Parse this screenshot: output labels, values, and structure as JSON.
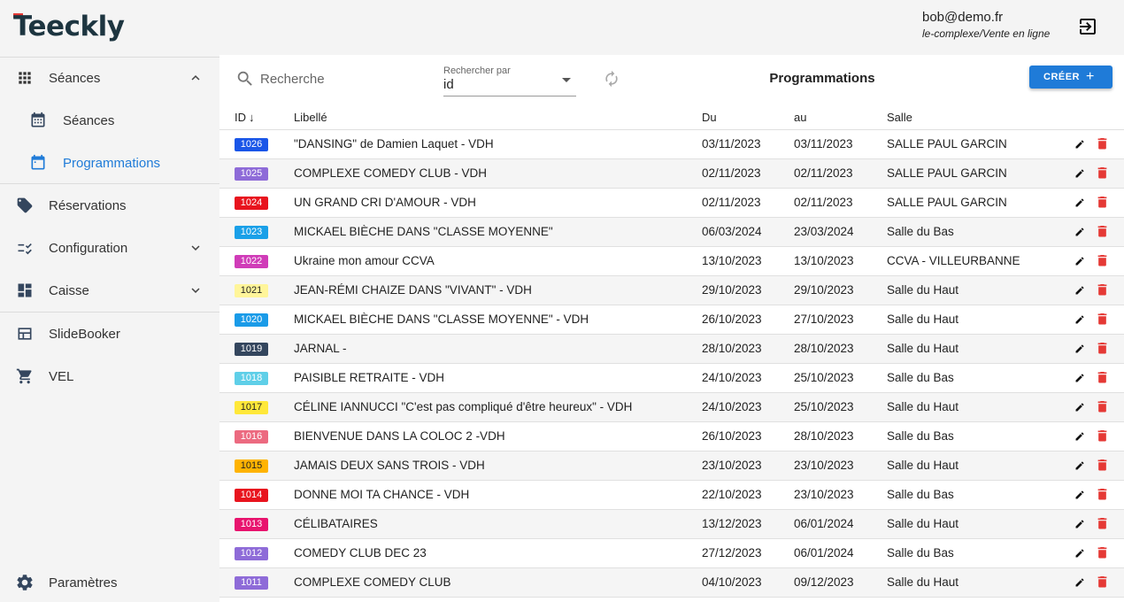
{
  "app": {
    "logo_text": "Teeckly"
  },
  "user": {
    "email": "bob@demo.fr",
    "context": "le-complexe/Vente en ligne"
  },
  "sidebar": {
    "items": [
      {
        "label": "Séances",
        "icon": "grid-icon"
      },
      {
        "label": "Séances",
        "icon": "calendar-icon"
      },
      {
        "label": "Programmations",
        "icon": "calendar-icon",
        "active": true
      },
      {
        "label": "Réservations",
        "icon": "tag-icon"
      },
      {
        "label": "Configuration",
        "icon": "checklist-icon"
      },
      {
        "label": "Caisse",
        "icon": "dashboard-icon"
      },
      {
        "label": "SlideBooker",
        "icon": "table-icon"
      },
      {
        "label": "VEL",
        "icon": "cart-icon"
      },
      {
        "label": "Paramètres",
        "icon": "gear-icon"
      }
    ]
  },
  "toolbar": {
    "search_placeholder": "Recherche",
    "search_by_label": "Rechercher par",
    "search_by_value": "id",
    "title": "Programmations",
    "create_label": "CRÉER",
    "create_plus": "+"
  },
  "table": {
    "headers": {
      "id": "ID",
      "libelle": "Libellé",
      "du": "Du",
      "au": "au",
      "salle": "Salle"
    },
    "sort_arrow": "↓",
    "rows": [
      {
        "id": "1026",
        "color": "#1a56e8",
        "badge_text_color": "#ffffff",
        "libelle": "\"DANSING\" de Damien Laquet - VDH",
        "du": "03/11/2023",
        "au": "03/11/2023",
        "salle": "SALLE PAUL GARCIN"
      },
      {
        "id": "1025",
        "color": "#8e6bd8",
        "badge_text_color": "#ffffff",
        "libelle": "COMPLEXE COMEDY CLUB - VDH",
        "du": "02/11/2023",
        "au": "02/11/2023",
        "salle": "SALLE PAUL GARCIN"
      },
      {
        "id": "1024",
        "color": "#e8141e",
        "badge_text_color": "#ffffff",
        "libelle": "UN GRAND CRI D'AMOUR - VDH",
        "du": "02/11/2023",
        "au": "02/11/2023",
        "salle": "SALLE PAUL GARCIN"
      },
      {
        "id": "1023",
        "color": "#1aa0e8",
        "badge_text_color": "#ffffff",
        "libelle": "MICKAEL BIÈCHE DANS \"CLASSE MOYENNE\"",
        "du": "06/03/2024",
        "au": "23/03/2024",
        "salle": "Salle du Bas"
      },
      {
        "id": "1022",
        "color": "#d03cb8",
        "badge_text_color": "#ffffff",
        "libelle": "Ukraine mon amour CCVA",
        "du": "13/10/2023",
        "au": "13/10/2023",
        "salle": "CCVA - VILLEURBANNE"
      },
      {
        "id": "1021",
        "color": "#fff59a",
        "badge_text_color": "#222222",
        "libelle": "JEAN-RÉMI CHAIZE DANS \"VIVANT\" - VDH",
        "du": "29/10/2023",
        "au": "29/10/2023",
        "salle": "Salle du Haut"
      },
      {
        "id": "1020",
        "color": "#1a9be8",
        "badge_text_color": "#ffffff",
        "libelle": "MICKAEL BIÈCHE DANS \"CLASSE MOYENNE\" - VDH",
        "du": "26/10/2023",
        "au": "27/10/2023",
        "salle": "Salle du Haut"
      },
      {
        "id": "1019",
        "color": "#34465e",
        "badge_text_color": "#ffffff",
        "libelle": "JARNAL -",
        "du": "28/10/2023",
        "au": "28/10/2023",
        "salle": "Salle du Haut"
      },
      {
        "id": "1018",
        "color": "#5fcfe8",
        "badge_text_color": "#ffffff",
        "libelle": "PAISIBLE RETRAITE - VDH",
        "du": "24/10/2023",
        "au": "25/10/2023",
        "salle": "Salle du Bas"
      },
      {
        "id": "1017",
        "color": "#ffe83a",
        "badge_text_color": "#222222",
        "libelle": "CÉLINE IANNUCCI \"C'est pas compliqué d'être heureux\" - VDH",
        "du": "24/10/2023",
        "au": "25/10/2023",
        "salle": "Salle du Haut"
      },
      {
        "id": "1016",
        "color": "#ec6a80",
        "badge_text_color": "#ffffff",
        "libelle": "BIENVENUE DANS LA COLOC 2 -VDH",
        "du": "26/10/2023",
        "au": "28/10/2023",
        "salle": "Salle du Bas"
      },
      {
        "id": "1015",
        "color": "#ffb300",
        "badge_text_color": "#222222",
        "libelle": "JAMAIS DEUX SANS TROIS - VDH",
        "du": "23/10/2023",
        "au": "23/10/2023",
        "salle": "Salle du Haut"
      },
      {
        "id": "1014",
        "color": "#e8141e",
        "badge_text_color": "#ffffff",
        "libelle": "DONNE MOI TA CHANCE - VDH",
        "du": "22/10/2023",
        "au": "23/10/2023",
        "salle": "Salle du Bas"
      },
      {
        "id": "1013",
        "color": "#e8146e",
        "badge_text_color": "#ffffff",
        "libelle": "CÉLIBATAIRES",
        "du": "13/12/2023",
        "au": "06/01/2024",
        "salle": "Salle du Haut"
      },
      {
        "id": "1012",
        "color": "#8e6bd8",
        "badge_text_color": "#ffffff",
        "libelle": "COMEDY CLUB DEC 23",
        "du": "27/12/2023",
        "au": "06/01/2024",
        "salle": "Salle du Bas"
      },
      {
        "id": "1011",
        "color": "#8e6bd8",
        "badge_text_color": "#ffffff",
        "libelle": "COMPLEXE COMEDY CLUB",
        "du": "04/10/2023",
        "au": "09/12/2023",
        "salle": "Salle du Haut"
      }
    ]
  },
  "colors": {
    "accent": "#1f7bd8",
    "brand_dark": "#1d3540",
    "brand_red": "#e53935",
    "delete": "#e53935"
  }
}
